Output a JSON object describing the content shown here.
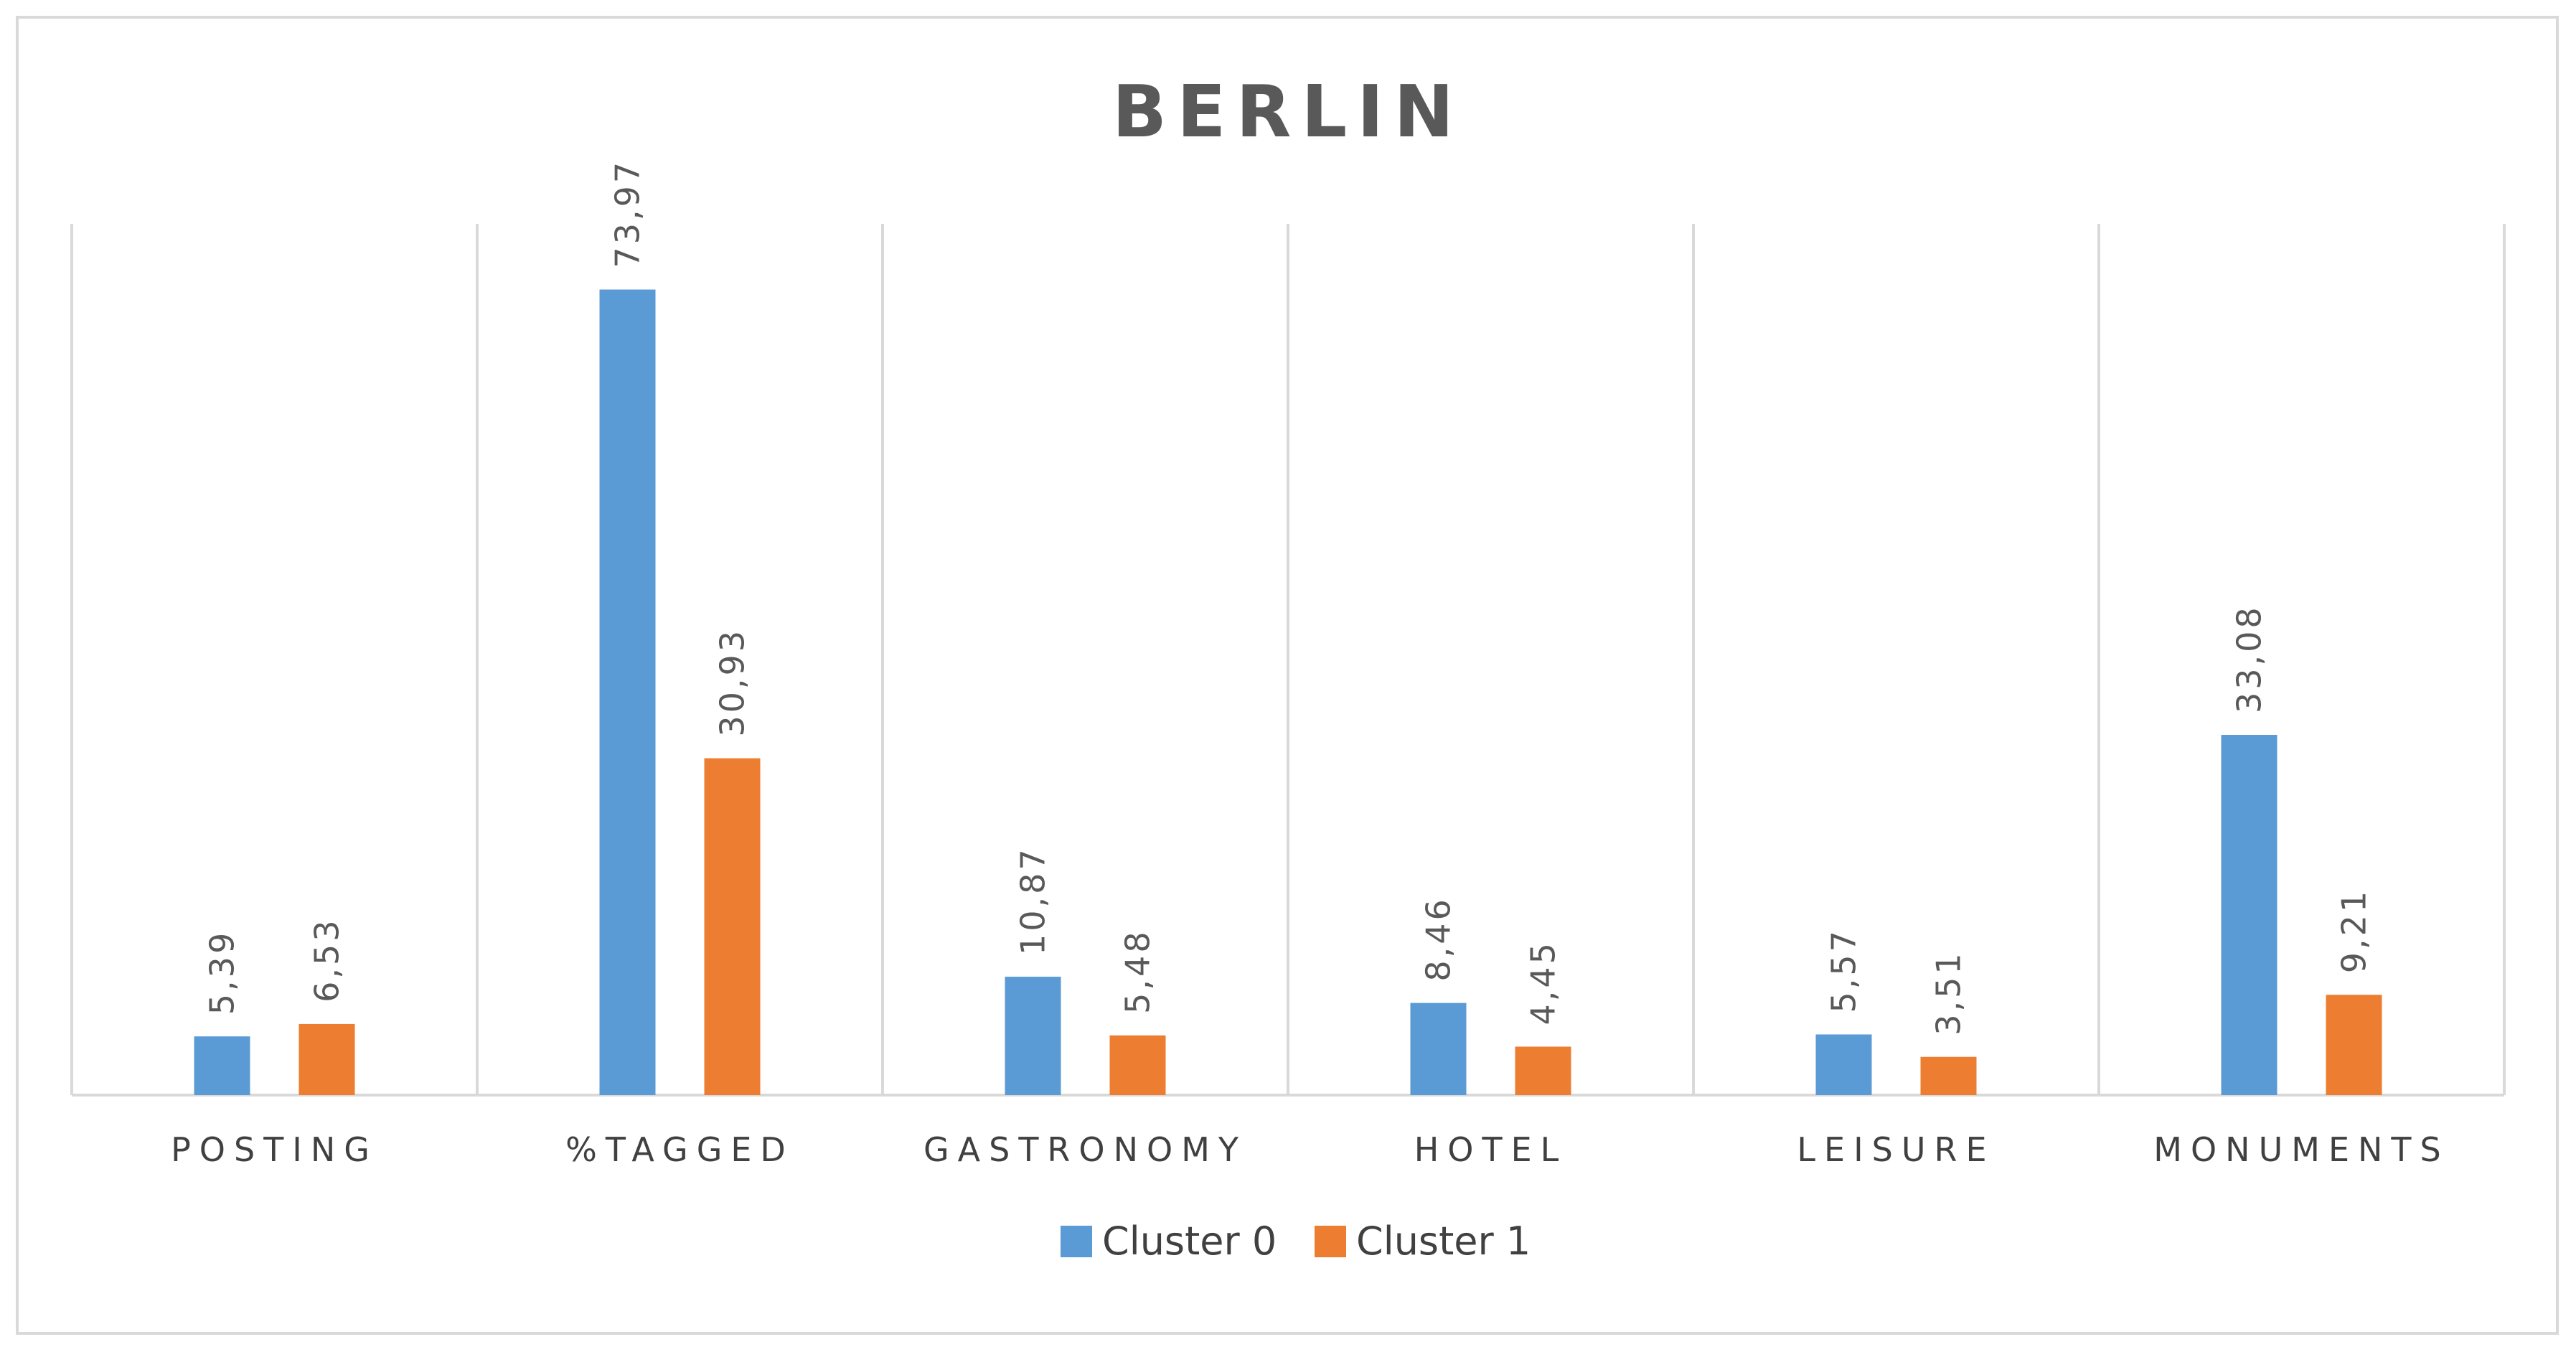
{
  "chart_data": {
    "type": "bar",
    "title": "BERLIN",
    "categories": [
      "POSTING",
      "%TAGGED",
      "GASTRONOMY",
      "HOTEL",
      "LEISURE",
      "MONUMENTS"
    ],
    "series": [
      {
        "name": "Cluster 0",
        "color": "#5b9bd5",
        "values": [
          5.39,
          73.97,
          10.87,
          8.46,
          5.57,
          33.08
        ],
        "labels": [
          "5,39",
          "73,97",
          "10,87",
          "8,46",
          "5,57",
          "33,08"
        ]
      },
      {
        "name": "Cluster 1",
        "color": "#ed7d31",
        "values": [
          6.53,
          30.93,
          5.48,
          4.45,
          3.51,
          9.21
        ],
        "labels": [
          "6,53",
          "30,93",
          "5,48",
          "4,45",
          "3,51",
          "9,21"
        ]
      }
    ],
    "ylim": [
      0,
      80
    ],
    "grid": "vertical category separators",
    "legend": "bottom"
  }
}
